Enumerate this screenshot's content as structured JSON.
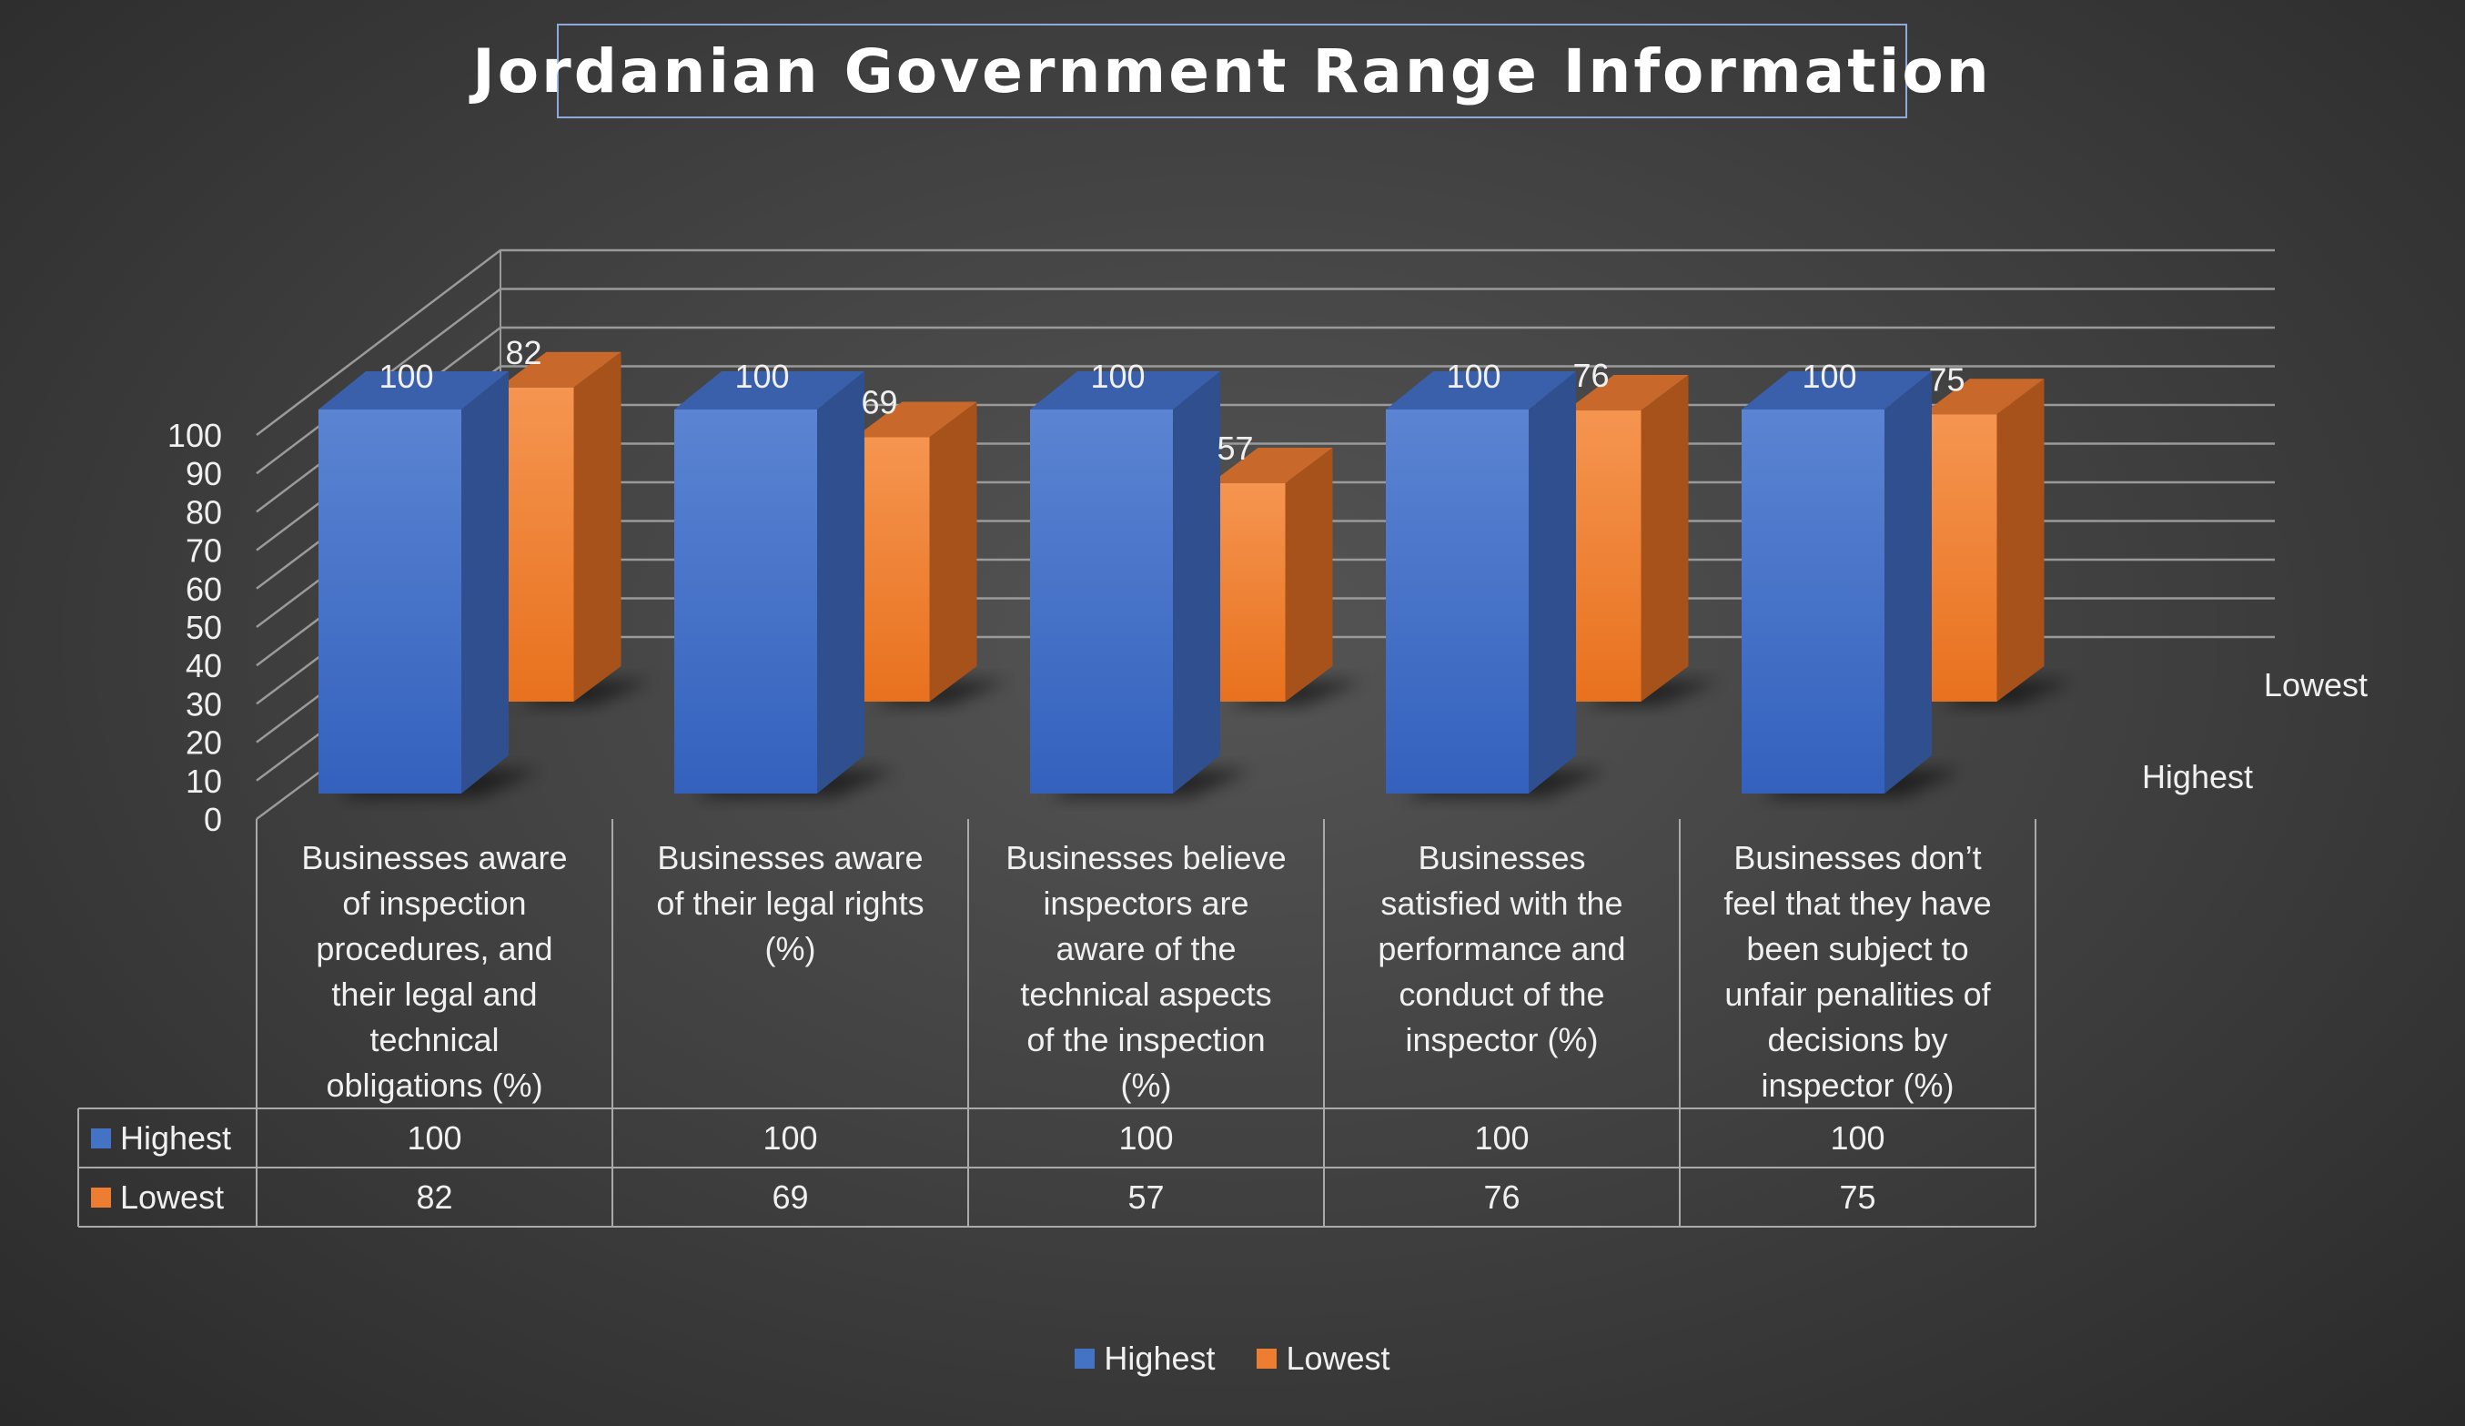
{
  "chart_data": {
    "type": "bar",
    "title": "Jordanian Government Range Information",
    "categories": [
      "Businesses aware of inspection procedures, and their legal and technical obligations (%)",
      "Businesses aware of their legal rights (%)",
      "Businesses believe inspectors are aware of the technical aspects of the inspection (%)",
      "Businesses satisfied with the performance and conduct of the inspector (%)",
      "Businesses don’t feel that they have been subject to unfair penalities of decisions by inspector (%)"
    ],
    "category_lines": [
      [
        "Businesses aware",
        "of inspection",
        "procedures, and",
        "their legal and",
        "technical",
        "obligations (%)"
      ],
      [
        "Businesses aware",
        "of their legal rights",
        "(%)"
      ],
      [
        "Businesses believe",
        "inspectors are",
        "aware of the",
        "technical aspects",
        "of the inspection",
        "(%)"
      ],
      [
        "Businesses",
        "satisfied with the",
        "performance and",
        "conduct of the",
        "inspector (%)"
      ],
      [
        "Businesses don’t",
        "feel that they have",
        "been subject to",
        "unfair penalities of",
        "decisions by",
        "inspector (%)"
      ]
    ],
    "series": [
      {
        "name": "Highest",
        "values": [
          100,
          100,
          100,
          100,
          100
        ],
        "color": "#4472c4"
      },
      {
        "name": "Lowest",
        "values": [
          82,
          69,
          57,
          76,
          75
        ],
        "color": "#ed7d31"
      }
    ],
    "ylim": [
      0,
      100
    ],
    "yticks": [
      "0",
      "10",
      "20",
      "30",
      "40",
      "50",
      "60",
      "70",
      "80",
      "90",
      "100"
    ],
    "depth_labels": [
      "Highest",
      "Lowest"
    ],
    "grid": true,
    "data_table": true,
    "legend": "bottom"
  }
}
